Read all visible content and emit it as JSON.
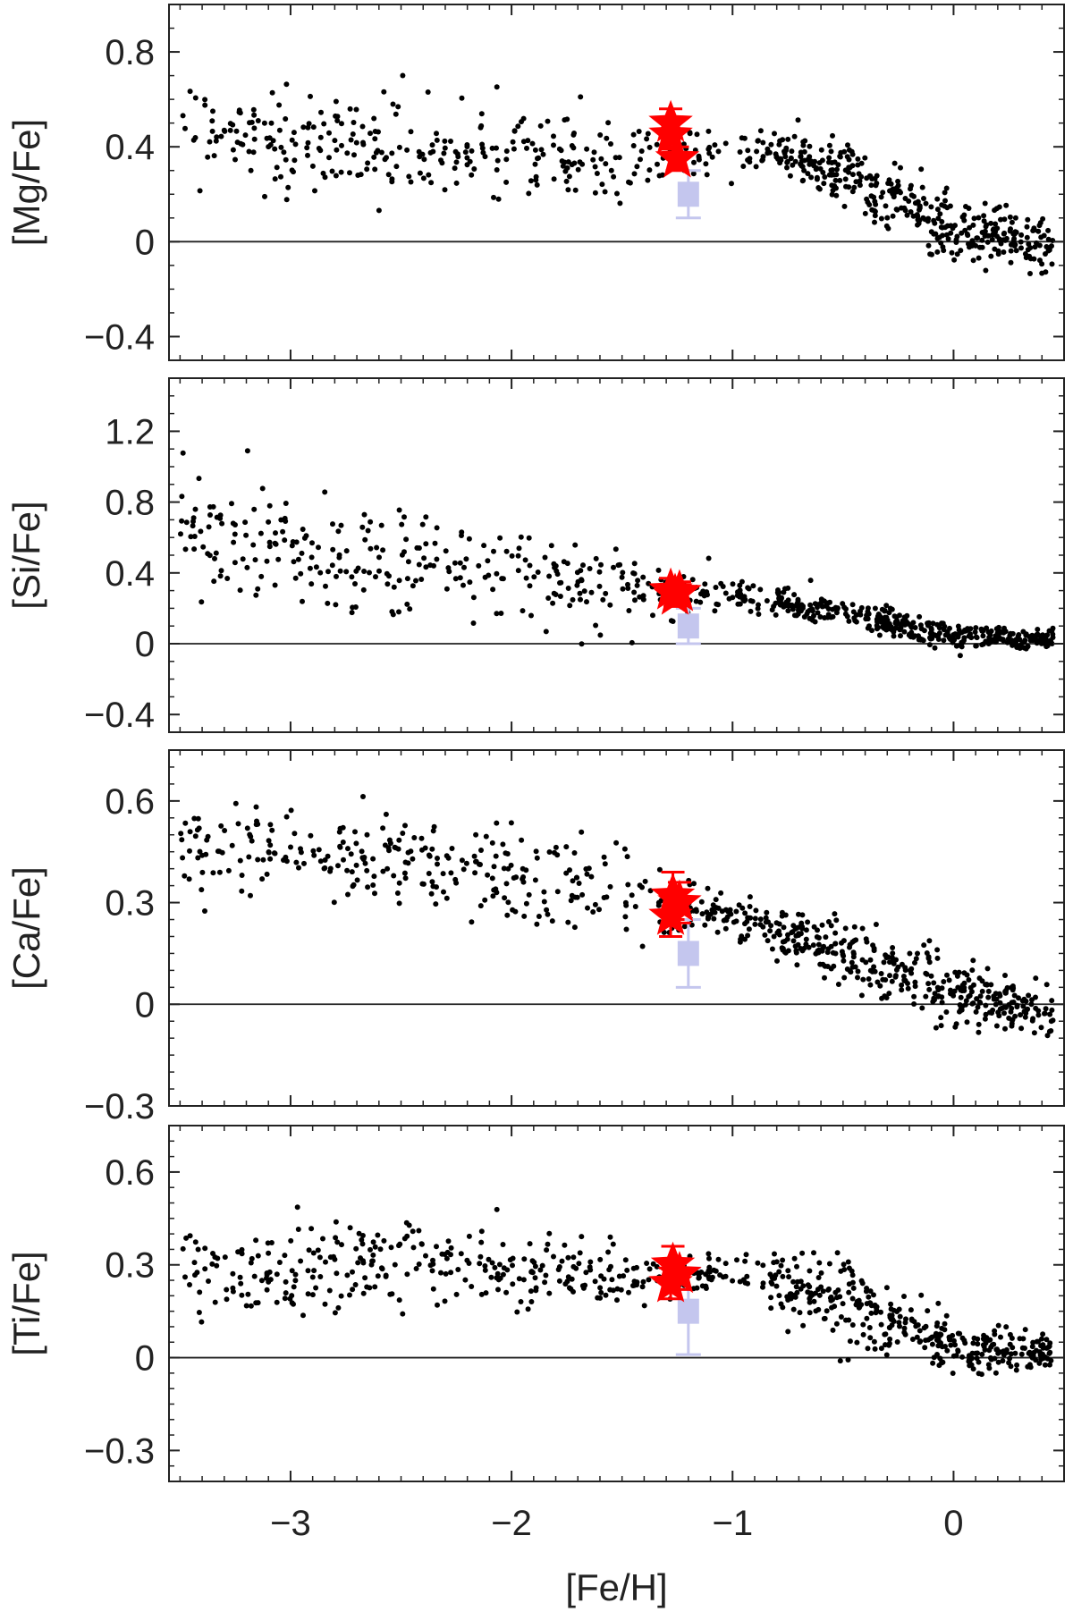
{
  "figure": {
    "xlabel": "[Fe/H]",
    "xlim": [
      -3.55,
      0.5
    ],
    "xticks": [
      -3,
      -2,
      -1,
      0
    ],
    "xtick_labels": [
      "−3",
      "−2",
      "−1",
      "0"
    ],
    "colors": {
      "field_stars": "#000000",
      "program_stars": "#ff0000",
      "comparison": "#c4c6ee",
      "axes": "#222222"
    }
  },
  "chart_data": [
    {
      "type": "scatter",
      "ylabel": "[Mg/Fe]",
      "ylim": [
        -0.5,
        1.0
      ],
      "yticks": [
        -0.4,
        0,
        0.4,
        0.8
      ],
      "ytick_labels": [
        "−0.4",
        "0",
        "0.4",
        "0.8"
      ],
      "reference_line": 0,
      "grid": false,
      "program_stars": [
        {
          "x": -1.28,
          "y": 0.5,
          "err": 0.06
        },
        {
          "x": -1.28,
          "y": 0.45,
          "err": 0.06
        },
        {
          "x": -1.25,
          "y": 0.35,
          "err": 0.05
        }
      ],
      "comparison": [
        {
          "x": -1.2,
          "y": 0.2,
          "err": 0.1
        }
      ],
      "field_trend": [
        {
          "x": -3.5,
          "y": 0.48,
          "spread": 0.12
        },
        {
          "x": -2.5,
          "y": 0.4,
          "spread": 0.1
        },
        {
          "x": -1.5,
          "y": 0.33,
          "spread": 0.1
        },
        {
          "x": -1.0,
          "y": 0.38,
          "spread": 0.04
        },
        {
          "x": -0.7,
          "y": 0.36,
          "spread": 0.05
        },
        {
          "x": -0.4,
          "y": 0.25,
          "spread": 0.08
        },
        {
          "x": 0.0,
          "y": 0.05,
          "spread": 0.07
        },
        {
          "x": 0.45,
          "y": -0.02,
          "spread": 0.06
        }
      ]
    },
    {
      "type": "scatter",
      "ylabel": "[Si/Fe]",
      "ylim": [
        -0.5,
        1.5
      ],
      "yticks": [
        -0.4,
        0,
        0.4,
        0.8,
        1.2
      ],
      "ytick_labels": [
        "−0.4",
        "0",
        "0.4",
        "0.8",
        "1.2"
      ],
      "reference_line": 0,
      "grid": false,
      "program_stars": [
        {
          "x": -1.28,
          "y": 0.3,
          "err": 0.07
        },
        {
          "x": -1.26,
          "y": 0.27,
          "err": 0.06
        },
        {
          "x": -1.24,
          "y": 0.29,
          "err": 0.06
        }
      ],
      "comparison": [
        {
          "x": -1.2,
          "y": 0.1,
          "err": 0.1
        }
      ],
      "field_trend": [
        {
          "x": -3.5,
          "y": 0.6,
          "spread": 0.22
        },
        {
          "x": -2.5,
          "y": 0.45,
          "spread": 0.17
        },
        {
          "x": -1.5,
          "y": 0.32,
          "spread": 0.12
        },
        {
          "x": -1.0,
          "y": 0.28,
          "spread": 0.05
        },
        {
          "x": -0.6,
          "y": 0.2,
          "spread": 0.05
        },
        {
          "x": 0.0,
          "y": 0.04,
          "spread": 0.04
        },
        {
          "x": 0.45,
          "y": 0.03,
          "spread": 0.03
        }
      ]
    },
    {
      "type": "scatter",
      "ylabel": "[Ca/Fe]",
      "ylim": [
        -0.3,
        0.75
      ],
      "yticks": [
        -0.3,
        0,
        0.3,
        0.6
      ],
      "ytick_labels": [
        "−0.3",
        "0",
        "0.3",
        "0.6"
      ],
      "reference_line": 0,
      "grid": false,
      "program_stars": [
        {
          "x": -1.27,
          "y": 0.32,
          "err": 0.07
        },
        {
          "x": -1.28,
          "y": 0.26,
          "err": 0.06
        },
        {
          "x": -1.24,
          "y": 0.3,
          "err": 0.06
        }
      ],
      "comparison": [
        {
          "x": -1.2,
          "y": 0.15,
          "err": 0.1
        }
      ],
      "field_trend": [
        {
          "x": -3.5,
          "y": 0.47,
          "spread": 0.07
        },
        {
          "x": -2.5,
          "y": 0.43,
          "spread": 0.07
        },
        {
          "x": -1.5,
          "y": 0.33,
          "spread": 0.08
        },
        {
          "x": -1.0,
          "y": 0.26,
          "spread": 0.03
        },
        {
          "x": -0.6,
          "y": 0.18,
          "spread": 0.06
        },
        {
          "x": 0.0,
          "y": 0.03,
          "spread": 0.05
        },
        {
          "x": 0.45,
          "y": -0.03,
          "spread": 0.04
        }
      ]
    },
    {
      "type": "scatter",
      "ylabel": "[Ti/Fe]",
      "ylim": [
        -0.4,
        0.75
      ],
      "yticks": [
        -0.3,
        0,
        0.3,
        0.6
      ],
      "ytick_labels": [
        "−0.3",
        "0",
        "0.3",
        "0.6"
      ],
      "reference_line": 0,
      "grid": false,
      "program_stars": [
        {
          "x": -1.27,
          "y": 0.3,
          "err": 0.06
        },
        {
          "x": -1.28,
          "y": 0.24,
          "err": 0.05
        },
        {
          "x": -1.24,
          "y": 0.27,
          "err": 0.05
        }
      ],
      "comparison": [
        {
          "x": -1.2,
          "y": 0.15,
          "err": 0.14
        }
      ],
      "field_trend": [
        {
          "x": -3.5,
          "y": 0.26,
          "spread": 0.1
        },
        {
          "x": -2.5,
          "y": 0.32,
          "spread": 0.08
        },
        {
          "x": -1.5,
          "y": 0.25,
          "spread": 0.05
        },
        {
          "x": -1.0,
          "y": 0.28,
          "spread": 0.03
        },
        {
          "x": -0.5,
          "y": 0.18,
          "spread": 0.08
        },
        {
          "x": 0.0,
          "y": 0.03,
          "spread": 0.04
        },
        {
          "x": 0.45,
          "y": 0.02,
          "spread": 0.03
        }
      ]
    }
  ]
}
